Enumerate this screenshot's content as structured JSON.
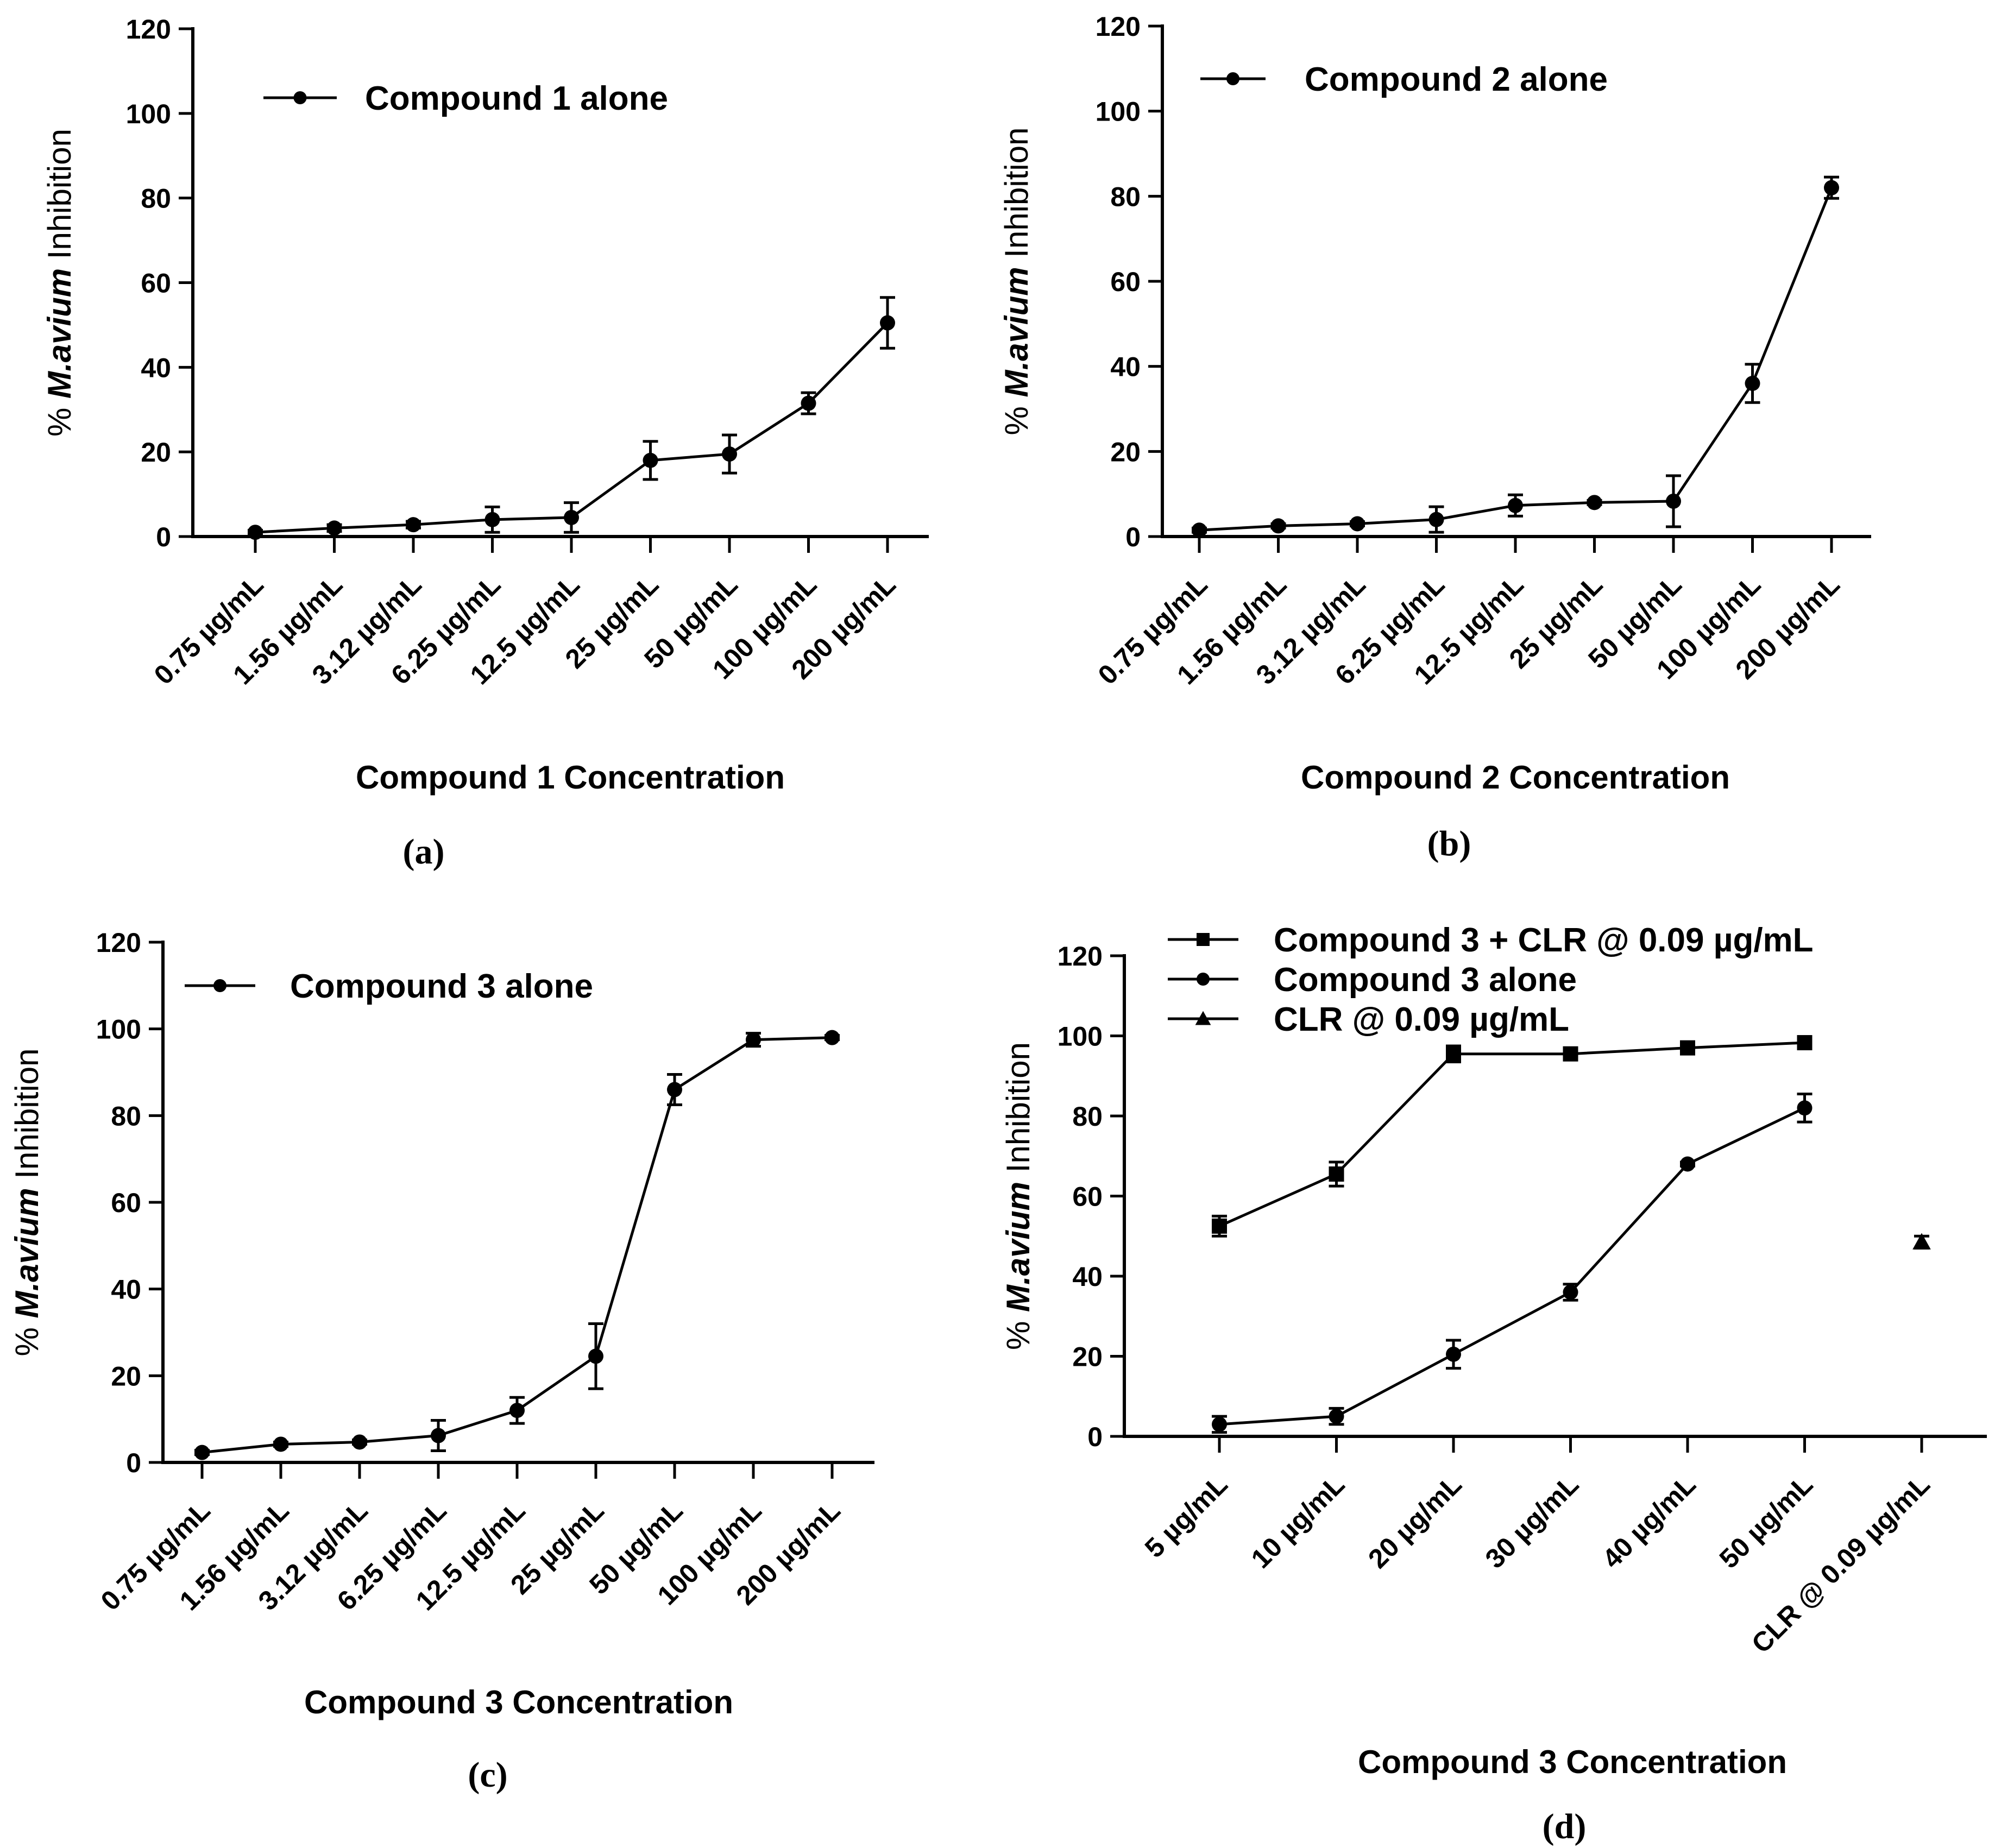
{
  "chart_data": [
    {
      "type": "line",
      "panel_label": "(a)",
      "xlabel": "Compound 1 Concentration",
      "ylabel": {
        "prefix": "% ",
        "italic": "M.avium",
        "suffix": " Inhibition"
      },
      "ylim": [
        0,
        120
      ],
      "yticks": [
        "0",
        "20",
        "40",
        "60",
        "80",
        "100",
        "120"
      ],
      "categories": [
        "0.75 µg/mL",
        "1.56 µg/mL",
        "3.12 µg/mL",
        "6.25 µg/mL",
        "12.5 µg/mL",
        "25 µg/mL",
        "50 µg/mL",
        "100 µg/mL",
        "200 µg/mL"
      ],
      "series": [
        {
          "name": "Compound 1 alone",
          "marker": "circle",
          "values": [
            1,
            2,
            2.8,
            4,
            4.5,
            18,
            19.5,
            31.5,
            50.5
          ],
          "errors": [
            0.5,
            0.8,
            0.8,
            3,
            3.5,
            4.5,
            4.5,
            2.5,
            6
          ]
        }
      ]
    },
    {
      "type": "line",
      "panel_label": "(b)",
      "xlabel": "Compound 2 Concentration",
      "ylabel": {
        "prefix": "% ",
        "italic": "M.avium",
        "suffix": " Inhibition"
      },
      "ylim": [
        0,
        120
      ],
      "yticks": [
        "0",
        "20",
        "40",
        "60",
        "80",
        "100",
        "120"
      ],
      "categories": [
        "0.75 µg/mL",
        "1.56 µg/mL",
        "3.12 µg/mL",
        "6.25 µg/mL",
        "12.5 µg/mL",
        "25 µg/mL",
        "50 µg/mL",
        "100 µg/mL",
        "200 µg/mL"
      ],
      "series": [
        {
          "name": "Compound 2 alone",
          "marker": "circle",
          "values": [
            1.5,
            2.5,
            3,
            4,
            7.3,
            8,
            8.3,
            36,
            82
          ],
          "errors": [
            0.5,
            0.5,
            0.5,
            3,
            2.5,
            0.5,
            6,
            4.5,
            2.5
          ]
        }
      ]
    },
    {
      "type": "line",
      "panel_label": "(c)",
      "xlabel": "Compound 3 Concentration",
      "ylabel": {
        "prefix": "% ",
        "italic": "M.avium",
        "suffix": " Inhibition"
      },
      "ylim": [
        0,
        120
      ],
      "yticks": [
        "0",
        "20",
        "40",
        "60",
        "80",
        "100",
        "120"
      ],
      "categories": [
        "0.75 µg/mL",
        "1.56 µg/mL",
        "3.12 µg/mL",
        "6.25 µg/mL",
        "12.5 µg/mL",
        "25 µg/mL",
        "50 µg/mL",
        "100 µg/mL",
        "200 µg/mL"
      ],
      "series": [
        {
          "name": "Compound 3 alone",
          "marker": "circle",
          "values": [
            2.3,
            4.2,
            4.7,
            6.2,
            12,
            24.5,
            86,
            97.5,
            98
          ],
          "errors": [
            0.5,
            0.5,
            0.5,
            3.5,
            3,
            7.5,
            3.5,
            1.5,
            0.5
          ]
        }
      ]
    },
    {
      "type": "line",
      "panel_label": "(d)",
      "xlabel": "Compound 3 Concentration",
      "ylabel": {
        "prefix": "% ",
        "italic": "M.avium",
        "suffix": " Inhibition"
      },
      "ylim": [
        0,
        120
      ],
      "yticks": [
        "0",
        "20",
        "40",
        "60",
        "80",
        "100",
        "120"
      ],
      "categories": [
        "5 µg/mL",
        "10 µg/mL",
        "20 µg/mL",
        "30 µg/mL",
        "40 µg/mL",
        "50 µg/mL",
        "CLR @ 0.09 µg/mL"
      ],
      "series": [
        {
          "name": "Compound 3 + CLR @ 0.09 µg/mL",
          "marker": "square",
          "values": [
            52.5,
            65.5,
            95.5,
            95.5,
            97,
            98.3,
            null
          ],
          "errors": [
            2.5,
            3,
            2,
            0.5,
            0.5,
            0.5,
            null
          ]
        },
        {
          "name": "Compound 3 alone",
          "marker": "circle",
          "values": [
            3,
            5,
            20.5,
            36,
            68,
            82,
            null
          ],
          "errors": [
            2,
            2,
            3.5,
            2,
            0.5,
            3.5,
            null
          ]
        },
        {
          "name": "CLR @ 0.09 µg/mL",
          "marker": "triangle",
          "values": [
            null,
            null,
            null,
            null,
            null,
            null,
            48.5
          ],
          "errors": [
            null,
            null,
            null,
            null,
            null,
            null,
            1.5
          ]
        }
      ]
    }
  ]
}
